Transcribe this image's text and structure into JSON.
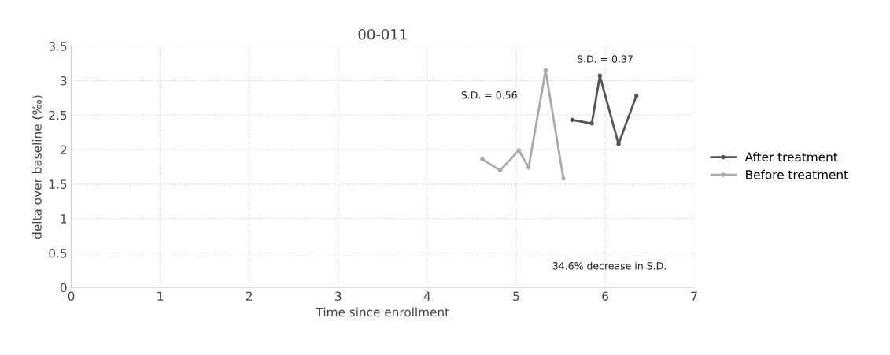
{
  "chart_data": {
    "type": "line",
    "title": "00-011",
    "xlabel": "Time since enrollment",
    "ylabel": "delta over baseline (‰)",
    "xlim": [
      0,
      7
    ],
    "xticks": [
      0,
      1,
      2,
      3,
      4,
      5,
      6,
      7
    ],
    "ylim": [
      0,
      3.5
    ],
    "yticks": [
      0,
      0.5,
      1,
      1.5,
      2,
      2.5,
      3,
      3.5
    ],
    "grid": true,
    "legend": "right",
    "marker": "circle",
    "series": [
      {
        "name": "After treatment",
        "color": "#555555",
        "x": [
          5.63,
          5.85,
          5.94,
          6.15,
          6.35
        ],
        "values": [
          2.43,
          2.38,
          3.07,
          2.08,
          2.78
        ]
      },
      {
        "name": "Before treatment",
        "color": "#aaaaaa",
        "x": [
          4.62,
          4.82,
          5.03,
          5.14,
          5.33,
          5.53
        ],
        "values": [
          1.86,
          1.7,
          1.99,
          1.74,
          3.15,
          1.58
        ]
      }
    ],
    "annotations": [
      "S.D. = 0.37",
      "S.D. = 0.56",
      "34.6% decrease in S.D."
    ]
  }
}
